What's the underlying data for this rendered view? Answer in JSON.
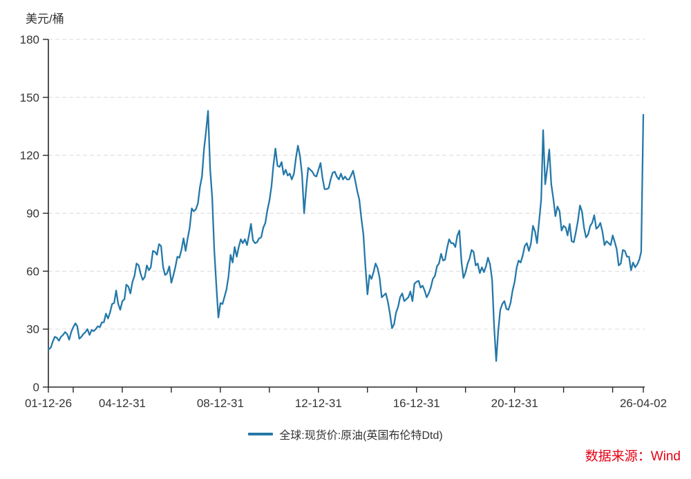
{
  "chart_data": {
    "type": "line",
    "title": "",
    "unit_label": "美元/桶",
    "series_name": "全球:现货价:原油(英国布伦特Dtd)",
    "source_label": "数据来源：Wind",
    "line_color": "#2478a8",
    "source_color": "#e60012",
    "axis_color": "#262626",
    "grid_color": "#d9d9d9",
    "tick_label_color": "#333333",
    "grid": "dashed-horizontal",
    "legend_position": "bottom-center",
    "ylim": [
      0,
      180
    ],
    "y_ticks": [
      0,
      30,
      60,
      90,
      120,
      150,
      180
    ],
    "x_start": "2001-12-26",
    "x_end": "2026-04-02",
    "sampling": "monthly",
    "x_ticks": [
      {
        "date": "2001-12-26",
        "label": "01-12-26"
      },
      {
        "date": "2002-12-31",
        "label": ""
      },
      {
        "date": "2004-12-31",
        "label": "04-12-31"
      },
      {
        "date": "2006-12-31",
        "label": ""
      },
      {
        "date": "2008-12-31",
        "label": "08-12-31"
      },
      {
        "date": "2010-12-31",
        "label": ""
      },
      {
        "date": "2012-12-31",
        "label": "12-12-31"
      },
      {
        "date": "2014-12-31",
        "label": ""
      },
      {
        "date": "2016-12-31",
        "label": "16-12-31"
      },
      {
        "date": "2018-12-31",
        "label": ""
      },
      {
        "date": "2020-12-31",
        "label": "20-12-31"
      },
      {
        "date": "2022-12-31",
        "label": ""
      },
      {
        "date": "2024-12-31",
        "label": ""
      },
      {
        "date": "2026-04-02",
        "label": "26-04-02"
      }
    ],
    "values": [
      20.0,
      19.5,
      20.5,
      23.5,
      26.0,
      25.5,
      24.0,
      26.0,
      27.0,
      28.5,
      27.5,
      24.5,
      28.5,
      31.0,
      33.0,
      31.5,
      25.0,
      26.0,
      27.5,
      28.5,
      30.0,
      27.0,
      29.5,
      29.0,
      30.0,
      31.5,
      31.0,
      33.5,
      33.5,
      38.0,
      35.5,
      38.5,
      43.0,
      43.5,
      50.0,
      43.0,
      40.0,
      44.5,
      45.5,
      53.0,
      52.0,
      48.5,
      54.5,
      57.5,
      64.0,
      63.0,
      58.5,
      55.5,
      57.0,
      63.0,
      60.5,
      62.0,
      70.5,
      70.0,
      68.5,
      74.0,
      73.0,
      62.0,
      58.0,
      59.0,
      62.5,
      54.0,
      58.0,
      62.0,
      67.5,
      67.0,
      71.0,
      77.0,
      70.5,
      77.0,
      82.5,
      92.5,
      91.0,
      92.0,
      95.0,
      103.5,
      109.0,
      123.0,
      132.5,
      143.0,
      113.0,
      98.0,
      71.5,
      52.5,
      36.0,
      43.5,
      43.0,
      46.5,
      50.5,
      57.0,
      68.5,
      64.5,
      72.5,
      67.5,
      72.5,
      76.5,
      74.5,
      76.5,
      73.5,
      78.5,
      84.5,
      76.0,
      74.5,
      75.0,
      77.0,
      77.5,
      82.5,
      85.0,
      91.5,
      96.5,
      104.0,
      114.5,
      123.5,
      114.5,
      114.0,
      116.5,
      110.0,
      112.5,
      109.5,
      110.5,
      107.5,
      110.5,
      119.0,
      125.0,
      119.5,
      110.0,
      90.0,
      102.5,
      113.5,
      112.5,
      111.5,
      109.5,
      109.0,
      112.5,
      116.0,
      108.5,
      102.5,
      102.5,
      103.0,
      107.5,
      111.0,
      111.5,
      109.0,
      107.5,
      110.5,
      107.5,
      109.0,
      107.5,
      107.5,
      109.5,
      112.0,
      107.0,
      101.5,
      97.0,
      87.5,
      79.0,
      62.5,
      48.0,
      58.0,
      56.0,
      59.5,
      64.0,
      61.5,
      56.5,
      46.5,
      47.5,
      48.5,
      44.0,
      38.0,
      30.5,
      32.5,
      38.5,
      41.5,
      46.5,
      48.5,
      44.5,
      45.5,
      46.5,
      49.5,
      44.5,
      53.5,
      54.5,
      55.0,
      51.5,
      52.5,
      50.0,
      46.5,
      48.5,
      51.5,
      56.0,
      57.5,
      62.5,
      64.0,
      69.0,
      65.5,
      66.0,
      72.0,
      76.5,
      74.5,
      74.5,
      72.5,
      78.5,
      81.0,
      65.0,
      56.5,
      59.5,
      64.0,
      66.5,
      71.0,
      70.0,
      63.0,
      64.0,
      59.0,
      62.0,
      59.5,
      62.5,
      67.0,
      63.5,
      55.5,
      32.0,
      13.5,
      29.0,
      40.0,
      43.0,
      44.5,
      40.5,
      40.0,
      43.5,
      50.0,
      54.5,
      62.0,
      65.5,
      64.5,
      68.0,
      73.0,
      74.5,
      70.5,
      74.5,
      83.5,
      80.5,
      74.5,
      86.0,
      97.0,
      133.0,
      105.0,
      113.0,
      123.0,
      105.0,
      97.5,
      88.5,
      93.5,
      91.0,
      81.0,
      83.5,
      82.5,
      78.5,
      84.5,
      75.5,
      75.0,
      80.0,
      86.0,
      94.0,
      91.0,
      82.5,
      77.5,
      79.0,
      83.5,
      85.0,
      89.0,
      82.0,
      83.0,
      85.0,
      80.5,
      73.5,
      75.5,
      74.5,
      73.5,
      78.5,
      75.0,
      71.5,
      63.0,
      64.0,
      71.0,
      70.5,
      67.5,
      67.5,
      60.5,
      64.5,
      62.0,
      63.5,
      66.0,
      70.0,
      141.0
    ]
  }
}
